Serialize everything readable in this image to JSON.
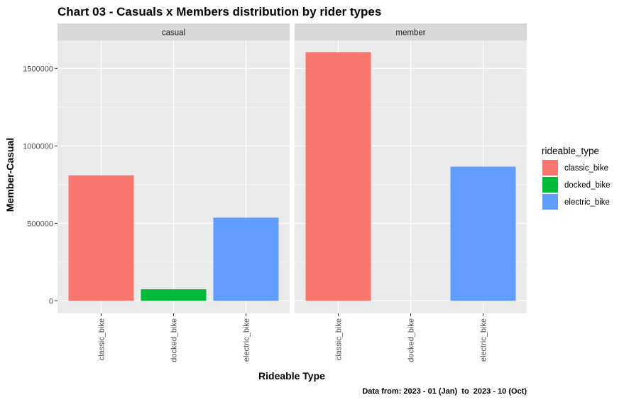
{
  "chart_data": {
    "type": "bar",
    "title": "Chart 03 - Casuals x Members distribution by rider types",
    "xlabel": "Rideable Type",
    "ylabel": "Member-Casual",
    "caption": "Data from: 2023 - 01 (Jan)  to  2023 - 10 (Oct)",
    "ylim": [
      0,
      1750000
    ],
    "yticks": [
      0,
      500000,
      1000000,
      1500000
    ],
    "ytick_labels": [
      "0",
      "500000",
      "1000000",
      "1500000"
    ],
    "categories": [
      "classic_bike",
      "docked_bike",
      "electric_bike"
    ],
    "facets": [
      {
        "name": "casual",
        "values": [
          810000,
          75000,
          537000
        ]
      },
      {
        "name": "member",
        "values": [
          1605000,
          0,
          866000
        ]
      }
    ],
    "legend": {
      "title": "rideable_type",
      "position": "right",
      "items": [
        "classic_bike",
        "docked_bike",
        "electric_bike"
      ]
    },
    "colors": [
      "#F8766D",
      "#00BA38",
      "#619CFF"
    ],
    "grid": true
  }
}
